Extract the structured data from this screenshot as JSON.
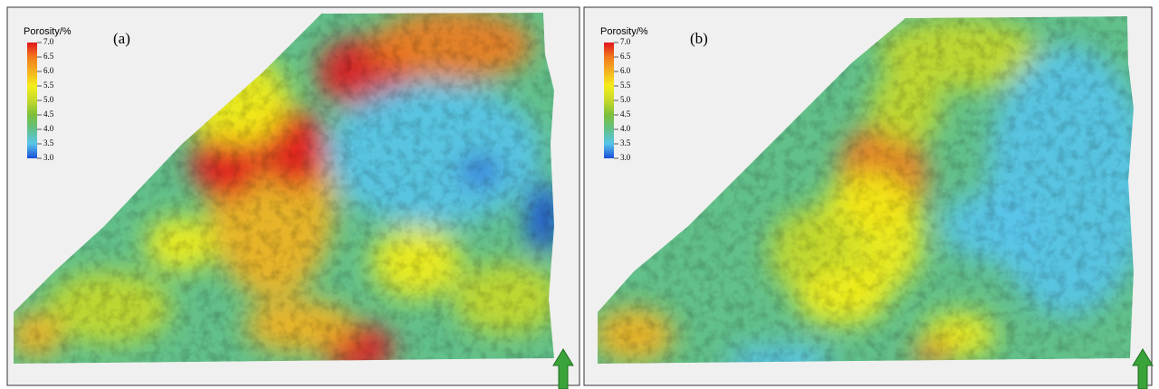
{
  "legend": {
    "title": "Porosity/%",
    "ticks": [
      {
        "value": 7,
        "label": "7.0"
      },
      {
        "value": 6.5,
        "label": "6.5"
      },
      {
        "value": 6,
        "label": "6.0"
      },
      {
        "value": 5.5,
        "label": "5.5"
      },
      {
        "value": 5,
        "label": "5.0"
      },
      {
        "value": 4.5,
        "label": "4.5"
      },
      {
        "value": 4,
        "label": "4.0"
      },
      {
        "value": 3.5,
        "label": "3.5"
      },
      {
        "value": 3,
        "label": "3.0"
      }
    ],
    "colors": [
      "#e0141e",
      "#f07a1e",
      "#f5b21f",
      "#f4ee1a",
      "#c6d92a",
      "#7cbf3a",
      "#62c08a",
      "#58c4ea",
      "#1a4fd6"
    ]
  },
  "panels": [
    {
      "label": "(a)"
    },
    {
      "label": "(b)"
    }
  ]
}
